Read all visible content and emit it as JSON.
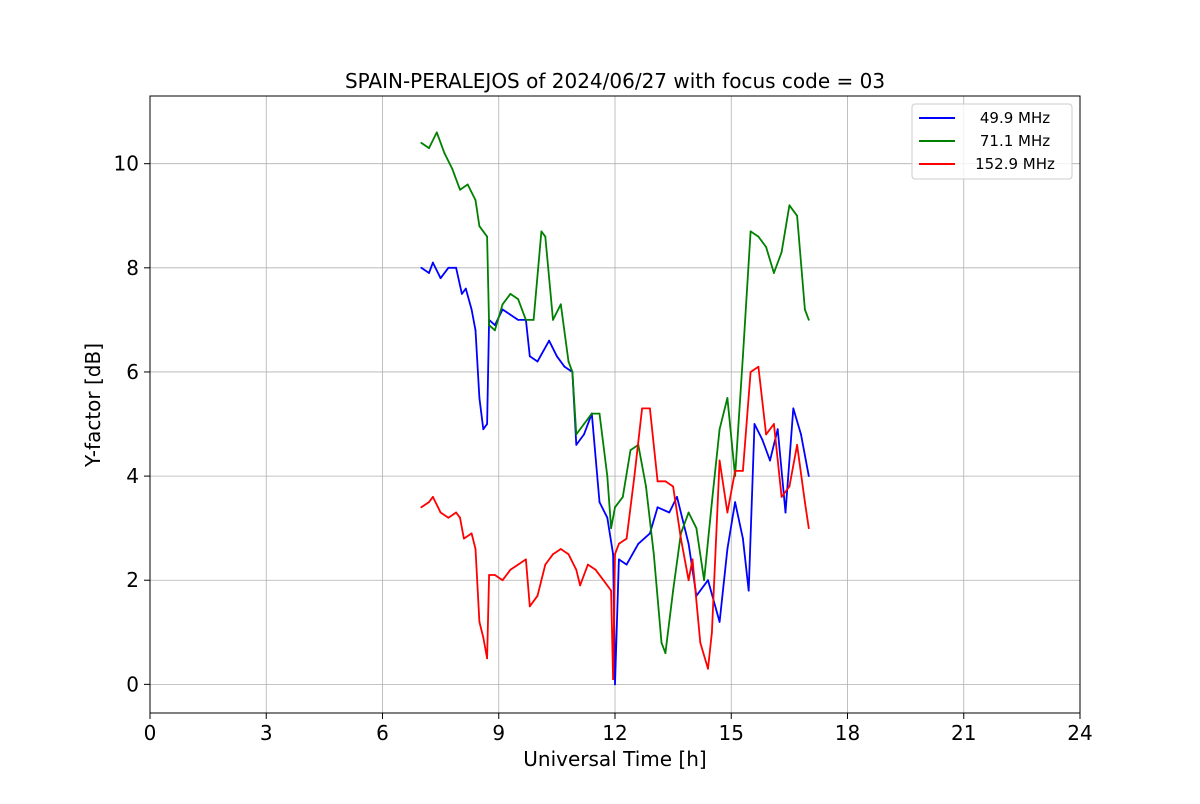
{
  "chart_data": {
    "type": "line",
    "title": "SPAIN-PERALEJOS of 2024/06/27 with focus code = 03",
    "xlabel": "Universal Time [h]",
    "ylabel": "Y-factor [dB]",
    "xlim": [
      0,
      24
    ],
    "ylim": [
      -0.55,
      11.3
    ],
    "xticks": [
      0,
      3,
      6,
      9,
      12,
      15,
      18,
      21,
      24
    ],
    "yticks": [
      0,
      2,
      4,
      6,
      8,
      10
    ],
    "grid": true,
    "legend_position": "top-right",
    "series": [
      {
        "name": "49.9 MHz",
        "color": "#0000ff",
        "x": [
          7.0,
          7.2,
          7.3,
          7.5,
          7.7,
          7.9,
          8.05,
          8.15,
          8.3,
          8.4,
          8.5,
          8.6,
          8.7,
          8.75,
          8.9,
          9.1,
          9.3,
          9.5,
          9.7,
          9.8,
          10.0,
          10.3,
          10.5,
          10.7,
          10.9,
          11.0,
          11.2,
          11.4,
          11.6,
          11.8,
          11.95,
          12.0,
          12.1,
          12.3,
          12.6,
          12.9,
          13.1,
          13.4,
          13.6,
          13.9,
          14.1,
          14.4,
          14.7,
          14.9,
          15.1,
          15.3,
          15.45,
          15.6,
          15.8,
          16.0,
          16.2,
          16.4,
          16.6,
          16.8,
          17.0
        ],
        "y": [
          8.0,
          7.9,
          8.1,
          7.8,
          8.0,
          8.0,
          7.5,
          7.6,
          7.2,
          6.8,
          5.5,
          4.9,
          5.0,
          7.0,
          6.9,
          7.2,
          7.1,
          7.0,
          7.0,
          6.3,
          6.2,
          6.6,
          6.3,
          6.1,
          6.0,
          4.6,
          4.8,
          5.2,
          3.5,
          3.2,
          2.5,
          0.0,
          2.4,
          2.3,
          2.7,
          2.9,
          3.4,
          3.3,
          3.6,
          2.7,
          1.7,
          2.0,
          1.2,
          2.6,
          3.5,
          2.8,
          1.8,
          5.0,
          4.7,
          4.3,
          4.9,
          3.3,
          5.3,
          4.8,
          4.0
        ],
        "values_label": "49.9 MHz"
      },
      {
        "name": "71.1 MHz",
        "color": "#008000",
        "x": [
          7.0,
          7.2,
          7.4,
          7.6,
          7.8,
          8.0,
          8.2,
          8.4,
          8.5,
          8.6,
          8.7,
          8.75,
          8.9,
          9.1,
          9.3,
          9.5,
          9.7,
          9.9,
          10.1,
          10.2,
          10.4,
          10.6,
          10.8,
          10.9,
          11.0,
          11.2,
          11.4,
          11.6,
          11.8,
          11.9,
          12.0,
          12.2,
          12.4,
          12.6,
          12.8,
          13.0,
          13.2,
          13.3,
          13.5,
          13.7,
          13.9,
          14.1,
          14.3,
          14.5,
          14.7,
          14.9,
          15.1,
          15.3,
          15.5,
          15.7,
          15.9,
          16.1,
          16.3,
          16.5,
          16.7,
          16.9,
          17.0
        ],
        "y": [
          10.4,
          10.3,
          10.6,
          10.2,
          9.9,
          9.5,
          9.6,
          9.3,
          8.8,
          8.7,
          8.6,
          6.9,
          6.8,
          7.3,
          7.5,
          7.4,
          7.0,
          7.0,
          8.7,
          8.6,
          7.0,
          7.3,
          6.2,
          6.0,
          4.8,
          5.0,
          5.2,
          5.2,
          4.0,
          3.0,
          3.4,
          3.6,
          4.5,
          4.6,
          3.8,
          2.5,
          0.8,
          0.6,
          1.8,
          2.9,
          3.3,
          3.0,
          2.0,
          3.5,
          4.9,
          5.5,
          4.0,
          6.3,
          8.7,
          8.6,
          8.4,
          7.9,
          8.3,
          9.2,
          9.0,
          7.2,
          7.0
        ],
        "values_label": "71.1 MHz"
      },
      {
        "name": "152.9 MHz",
        "color": "#ff0000",
        "x": [
          7.0,
          7.2,
          7.3,
          7.5,
          7.7,
          7.9,
          8.0,
          8.1,
          8.3,
          8.4,
          8.5,
          8.6,
          8.7,
          8.75,
          8.9,
          9.1,
          9.3,
          9.5,
          9.7,
          9.8,
          10.0,
          10.2,
          10.4,
          10.6,
          10.8,
          11.0,
          11.1,
          11.3,
          11.5,
          11.7,
          11.9,
          11.95,
          12.0,
          12.1,
          12.3,
          12.5,
          12.7,
          12.9,
          13.1,
          13.3,
          13.5,
          13.7,
          13.9,
          14.0,
          14.2,
          14.4,
          14.5,
          14.7,
          14.9,
          15.1,
          15.3,
          15.5,
          15.7,
          15.9,
          16.1,
          16.3,
          16.5,
          16.7,
          16.9,
          17.0
        ],
        "y": [
          3.4,
          3.5,
          3.6,
          3.3,
          3.2,
          3.3,
          3.2,
          2.8,
          2.9,
          2.6,
          1.2,
          0.9,
          0.5,
          2.1,
          2.1,
          2.0,
          2.2,
          2.3,
          2.4,
          1.5,
          1.7,
          2.3,
          2.5,
          2.6,
          2.5,
          2.2,
          1.9,
          2.3,
          2.2,
          2.0,
          1.8,
          0.1,
          2.5,
          2.7,
          2.8,
          4.0,
          5.3,
          5.3,
          3.9,
          3.9,
          3.8,
          2.8,
          2.0,
          2.4,
          0.8,
          0.3,
          1.0,
          4.3,
          3.3,
          4.1,
          4.1,
          6.0,
          6.1,
          4.8,
          5.0,
          3.6,
          3.8,
          4.6,
          3.5,
          3.0
        ],
        "values_label": "152.9 MHz"
      }
    ]
  }
}
